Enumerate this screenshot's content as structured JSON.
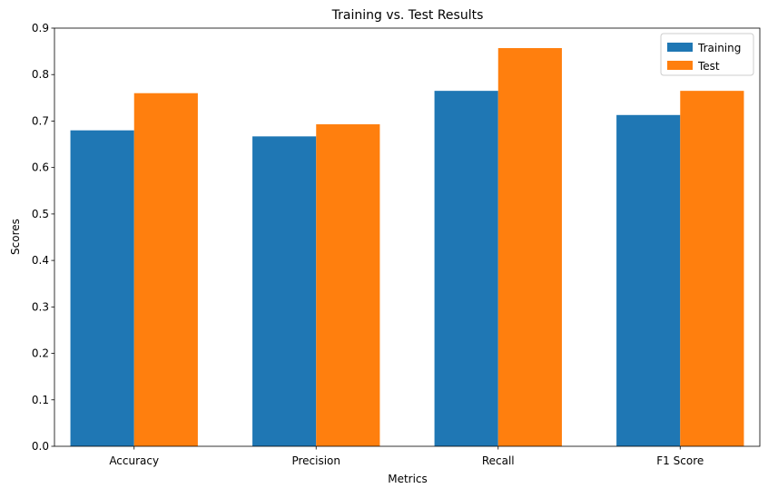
{
  "chart_data": {
    "type": "bar",
    "title": "Training vs. Test Results",
    "xlabel": "Metrics",
    "ylabel": "Scores",
    "categories": [
      "Accuracy",
      "Precision",
      "Recall",
      "F1 Score"
    ],
    "series": [
      {
        "name": "Training",
        "values": [
          0.68,
          0.667,
          0.765,
          0.713
        ],
        "color": "#1f77b4"
      },
      {
        "name": "Test",
        "values": [
          0.76,
          0.693,
          0.857,
          0.765
        ],
        "color": "#ff7f0e"
      }
    ],
    "ylim": [
      0,
      0.9
    ],
    "yticks": [
      "0.0",
      "0.1",
      "0.2",
      "0.3",
      "0.4",
      "0.5",
      "0.6",
      "0.7",
      "0.8",
      "0.9"
    ],
    "grid": false,
    "legend_position": "top-right"
  }
}
